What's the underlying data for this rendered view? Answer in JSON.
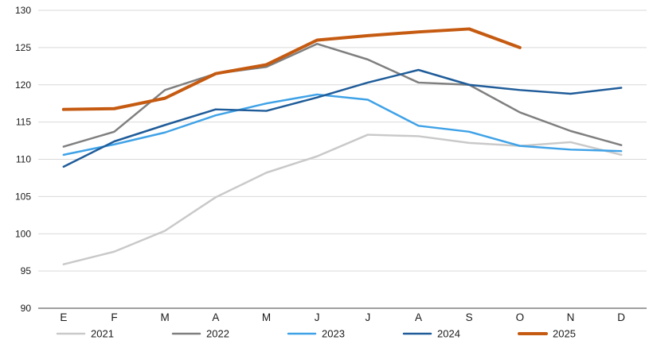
{
  "chart_data": {
    "type": "line",
    "title": "",
    "xlabel": "",
    "ylabel": "",
    "categories": [
      "E",
      "F",
      "M",
      "A",
      "M",
      "J",
      "J",
      "A",
      "S",
      "O",
      "N",
      "D"
    ],
    "ylim": [
      90,
      130
    ],
    "yticks": [
      90,
      95,
      100,
      105,
      110,
      115,
      120,
      125,
      130
    ],
    "grid": true,
    "legend_position": "bottom",
    "series": [
      {
        "name": "2021",
        "color": "#c9c9c9",
        "width": 2.5,
        "values": [
          95.9,
          97.6,
          100.4,
          104.9,
          108.2,
          110.4,
          113.3,
          113.1,
          112.2,
          111.8,
          112.3,
          110.6
        ]
      },
      {
        "name": "2022",
        "color": "#7f7f7f",
        "width": 2.5,
        "values": [
          111.7,
          113.7,
          119.3,
          121.5,
          122.4,
          125.5,
          123.4,
          120.3,
          120.0,
          116.3,
          113.8,
          111.9
        ]
      },
      {
        "name": "2023",
        "color": "#3fa2e7",
        "width": 2.5,
        "values": [
          110.6,
          112.0,
          113.6,
          115.9,
          117.5,
          118.7,
          118.0,
          114.5,
          113.7,
          111.8,
          111.3,
          111.1
        ]
      },
      {
        "name": "2024",
        "color": "#1f5c99",
        "width": 2.5,
        "values": [
          109.0,
          112.4,
          114.6,
          116.7,
          116.5,
          118.3,
          120.3,
          122.0,
          120.0,
          119.3,
          118.8,
          119.6
        ]
      },
      {
        "name": "2025",
        "color": "#c55a11",
        "width": 4,
        "values": [
          116.7,
          116.8,
          118.2,
          121.5,
          122.7,
          126.0,
          126.6,
          127.1,
          127.5,
          125.0
        ]
      }
    ]
  },
  "colors": {
    "background": "#ffffff",
    "gridline": "#d9d9d9",
    "axis_line": "#808080",
    "label_text": "#1a1a1a"
  }
}
